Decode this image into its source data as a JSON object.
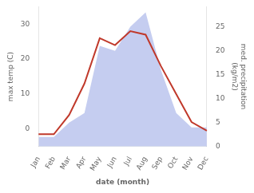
{
  "chart_data": {
    "type": "line",
    "xlabel": "date (month)",
    "ylabel": "max temp (C)",
    "y2label": "med. precipitation\n(kg/m2)",
    "categories": [
      "Jan",
      "Feb",
      "Mar",
      "Apr",
      "May",
      "Jun",
      "Jul",
      "Aug",
      "Sep",
      "Oct",
      "Nov",
      "Dec"
    ],
    "series": [
      {
        "type": "area",
        "axis": "y2",
        "color": "#c5cdf0",
        "values": [
          2,
          2,
          5,
          7,
          21,
          20,
          25,
          28,
          16,
          7,
          4,
          4
        ]
      },
      {
        "type": "line",
        "color": "#c0392b",
        "values": [
          -1.5,
          -1.5,
          4,
          13,
          26,
          24,
          28,
          27,
          18,
          10,
          2,
          -0.5
        ]
      }
    ],
    "ylim": [
      -5,
      35
    ],
    "yticks": [
      0,
      10,
      20,
      30
    ],
    "y2lim": [
      0,
      29.2
    ],
    "y2ticks": [
      0,
      5,
      10,
      15,
      20,
      25
    ],
    "grid": false
  }
}
